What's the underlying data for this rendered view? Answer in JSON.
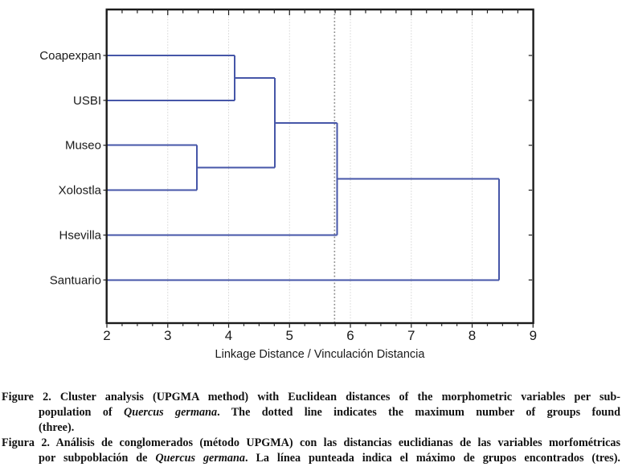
{
  "chart_data": {
    "type": "dendrogram",
    "orientation": "horizontal",
    "xlabel": "Linkage Distance / Vinculación Distancia",
    "xlim": [
      2,
      9
    ],
    "x_major_ticks": [
      2,
      3,
      4,
      5,
      6,
      7,
      8,
      9
    ],
    "x_minor_tick_step": 0.25,
    "grid_values": [
      3,
      4,
      5,
      6,
      7,
      8
    ],
    "leaves": [
      "Coapexpan",
      "USBI",
      "Museo",
      "Xolostla",
      "Hsevilla",
      "Santuario"
    ],
    "merges": [
      {
        "id": "m1",
        "a": "Coapexpan",
        "b": "USBI",
        "distance": 4.1
      },
      {
        "id": "m2",
        "a": "Museo",
        "b": "Xolostla",
        "distance": 3.48
      },
      {
        "id": "m3",
        "a": "m1",
        "b": "m2",
        "distance": 4.76
      },
      {
        "id": "m4",
        "a": "m3",
        "b": "Hsevilla",
        "distance": 5.78
      },
      {
        "id": "m5",
        "a": "m4",
        "b": "Santuario",
        "distance": 8.44
      }
    ],
    "cut_line": {
      "value": 5.74,
      "style": "dotted",
      "meaning": "maximum number of groups found (three)"
    },
    "legend": null,
    "grid": "vertical-light",
    "colors": {
      "link": "#4656a8",
      "cut_line": "#8c8c8c",
      "grid": "#d4d4d4",
      "frame": "#1b1b1b",
      "text": "#1a1a1a"
    }
  },
  "captions": {
    "english": {
      "lines": [
        {
          "fill": true,
          "hang": false,
          "segments": [
            {
              "text": "Figure 2. Cluster analysis (UPGMA method) with Euclidean distances of the morphometric variables per sub-"
            }
          ]
        },
        {
          "fill": true,
          "hang": true,
          "segments": [
            {
              "text": "population of "
            },
            {
              "text": "Quercus germana",
              "italic": true
            },
            {
              "text": ". The dotted line indicates the maximum number of groups found"
            }
          ]
        },
        {
          "fill": false,
          "hang": true,
          "segments": [
            {
              "text": "(three)."
            }
          ]
        }
      ]
    },
    "spanish": {
      "lines": [
        {
          "fill": true,
          "hang": false,
          "segments": [
            {
              "text": "Figura 2. Análisis de conglomerados (método UPGMA) con las distancias euclidianas de las variables morfométricas"
            }
          ]
        },
        {
          "fill": true,
          "hang": true,
          "segments": [
            {
              "text": "por subpoblación de "
            },
            {
              "text": "Quercus germana",
              "italic": true
            },
            {
              "text": ". La línea punteada indica el máximo de grupos encontrados (tres)."
            }
          ]
        }
      ]
    }
  }
}
